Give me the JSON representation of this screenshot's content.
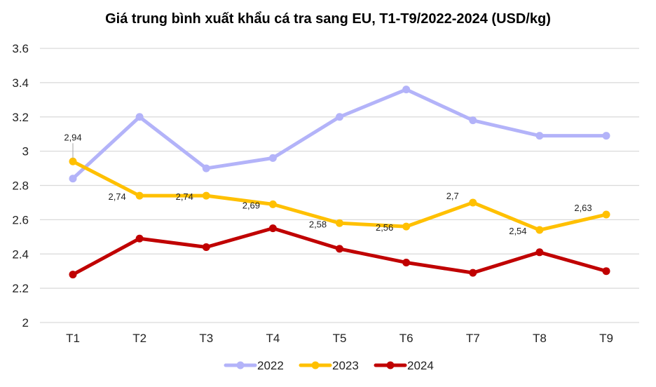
{
  "chart_data": {
    "type": "line",
    "title": "Giá trung bình xuất khẩu cá tra sang EU, T1-T9/2022-2024 (USD/kg)",
    "xlabel": "",
    "ylabel": "",
    "categories": [
      "T1",
      "T2",
      "T3",
      "T4",
      "T5",
      "T6",
      "T7",
      "T8",
      "T9"
    ],
    "ylim": [
      2,
      3.6
    ],
    "yticks": [
      "2",
      "2.2",
      "2.4",
      "2.6",
      "2.8",
      "3",
      "3.2",
      "3.4",
      "3.6"
    ],
    "grid": true,
    "legend_position": "bottom",
    "series": [
      {
        "name": "2022",
        "color": "#b3b3f9",
        "values": [
          2.84,
          3.2,
          2.9,
          2.96,
          3.2,
          3.36,
          3.18,
          3.09,
          3.09
        ],
        "data_labels": false
      },
      {
        "name": "2023",
        "color": "#ffc000",
        "values": [
          2.94,
          2.74,
          2.74,
          2.69,
          2.58,
          2.56,
          2.7,
          2.54,
          2.63
        ],
        "data_labels": true,
        "labels": [
          "2,94",
          "2,74",
          "2,74",
          "2,69",
          "2,58",
          "2,56",
          "2,7",
          "2,54",
          "2,63"
        ]
      },
      {
        "name": "2024",
        "color": "#c00000",
        "values": [
          2.28,
          2.49,
          2.44,
          2.55,
          2.43,
          2.35,
          2.29,
          2.41,
          2.3
        ],
        "data_labels": false
      }
    ]
  }
}
